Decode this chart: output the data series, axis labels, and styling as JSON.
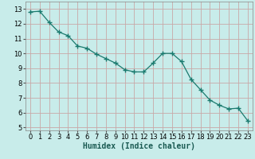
{
  "x": [
    0,
    1,
    2,
    3,
    4,
    5,
    6,
    7,
    8,
    9,
    10,
    11,
    12,
    13,
    14,
    15,
    16,
    17,
    18,
    19,
    20,
    21,
    22,
    23
  ],
  "y": [
    12.8,
    12.85,
    12.1,
    11.45,
    11.2,
    10.5,
    10.35,
    9.95,
    9.65,
    9.35,
    8.9,
    8.75,
    8.75,
    9.35,
    10.0,
    10.0,
    9.45,
    8.25,
    7.55,
    6.85,
    6.5,
    6.25,
    6.3,
    5.45
  ],
  "xlabel": "Humidex (Indice chaleur)",
  "xlim": [
    -0.5,
    23.5
  ],
  "ylim": [
    4.8,
    13.5
  ],
  "yticks": [
    5,
    6,
    7,
    8,
    9,
    10,
    11,
    12,
    13
  ],
  "xticks": [
    0,
    1,
    2,
    3,
    4,
    5,
    6,
    7,
    8,
    9,
    10,
    11,
    12,
    13,
    14,
    15,
    16,
    17,
    18,
    19,
    20,
    21,
    22,
    23
  ],
  "line_color": "#1a7a6e",
  "marker": "+",
  "marker_size": 4,
  "bg_color": "#c8ecea",
  "grid_color": "#c8a8a8",
  "label_fontsize": 7,
  "tick_fontsize": 6
}
